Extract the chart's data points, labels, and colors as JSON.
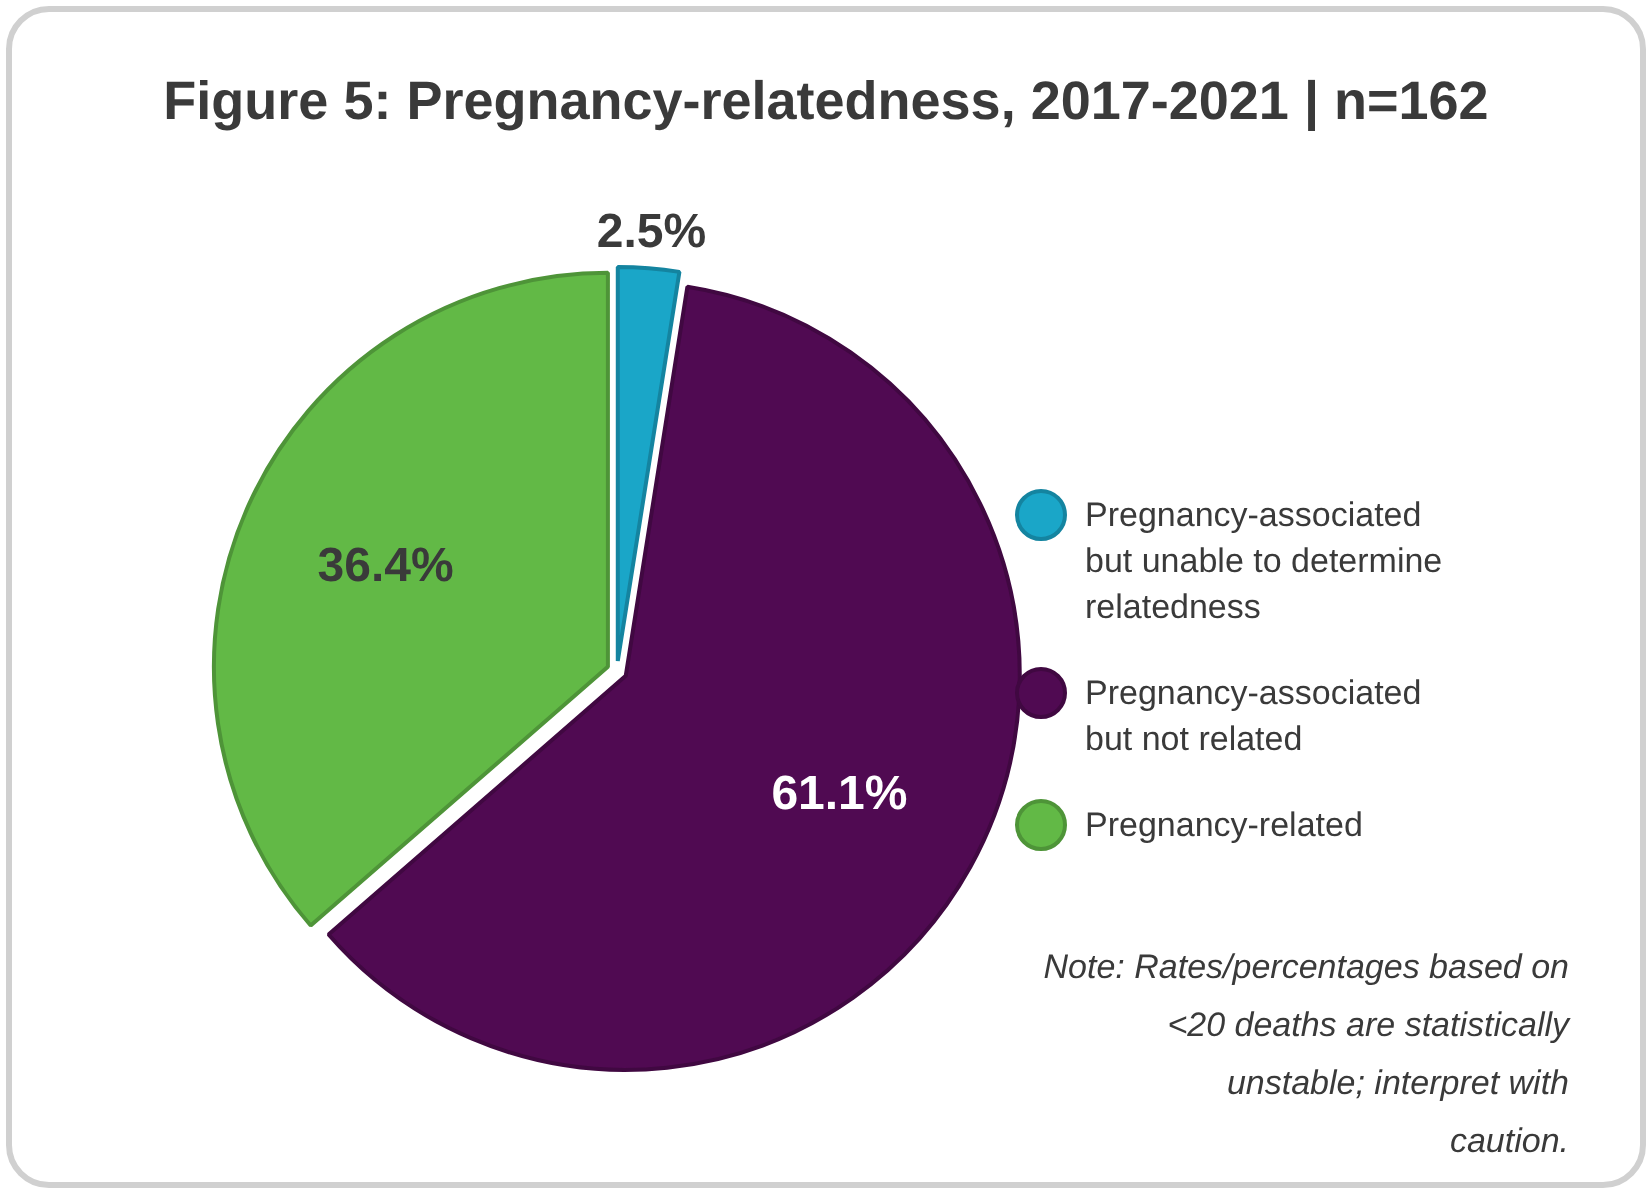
{
  "chart_data": {
    "type": "pie",
    "title": "Figure 5: Pregnancy-relatedness, 2017-2021 | n=162",
    "categories": [
      "Pregnancy-associated but unable to determine relatedness",
      "Pregnancy-associated but not related",
      "Pregnancy-related"
    ],
    "values": [
      2.5,
      61.1,
      36.4
    ],
    "colors": [
      "#1aa6c8",
      "#500a52",
      "#62b946"
    ],
    "value_labels": [
      "2.5%",
      "61.1%",
      "36.4%"
    ],
    "legend": "right",
    "annotations": [
      "Note: Rates/percentages based on <20 deaths are statistically unstable; interpret with caution."
    ]
  }
}
